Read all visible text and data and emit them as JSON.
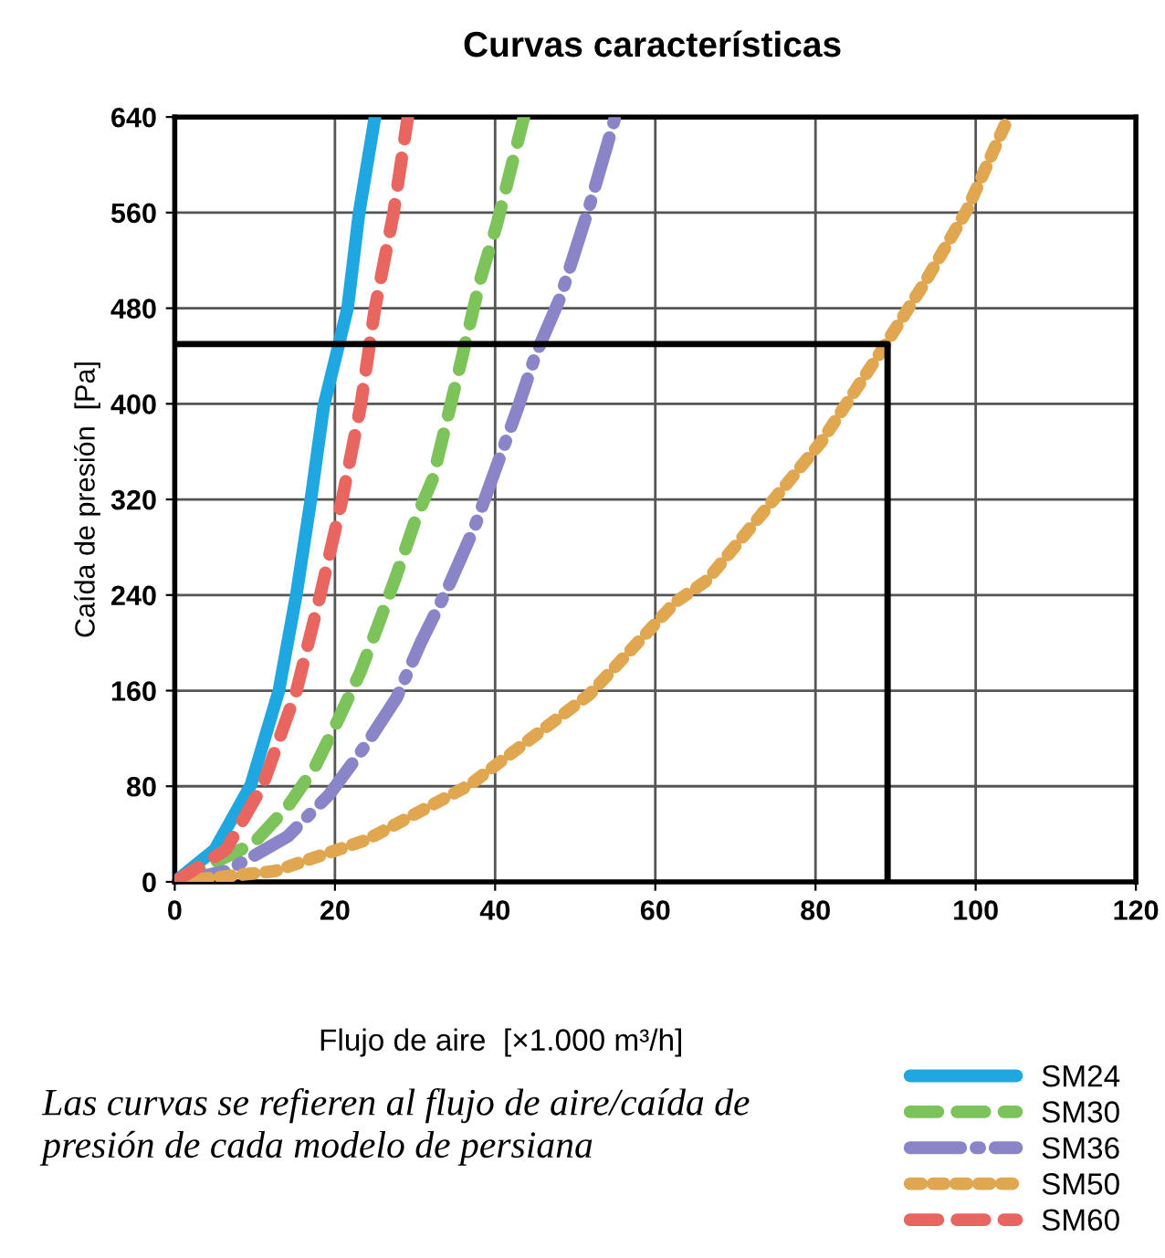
{
  "chart_data": {
    "type": "line",
    "title": "Curvas características",
    "xlabel": "Flujo de aire  [×1.000 m³/h]",
    "ylabel": "Caída de presión  [Pa]",
    "annotations": [
      "Las curvas se refieren al flujo de aire/caída de presión de cada modelo de persiana"
    ],
    "xlim": [
      0,
      120
    ],
    "ylim": [
      0,
      640
    ],
    "xticks": [
      0,
      20,
      40,
      60,
      80,
      100,
      120
    ],
    "yticks": [
      0,
      80,
      160,
      240,
      320,
      400,
      480,
      560,
      640
    ],
    "grid": true,
    "legend": "bottom right",
    "marker": "none",
    "series": [
      {
        "name": "SM24",
        "color": "#1ea7e0",
        "line_style": "solid",
        "x": [
          0,
          5.0,
          9.5,
          13.0,
          15.2,
          17.0,
          18.6,
          20.5,
          21.6,
          23.0,
          25
        ],
        "values": [
          0,
          27,
          81,
          160,
          241,
          320,
          398,
          450,
          481,
          559,
          640
        ]
      },
      {
        "name": "SM30",
        "color": "#7cc35a",
        "line_style": "dashed",
        "x": [
          0,
          9.8,
          14.1,
          17.5,
          20.5,
          23.2,
          25.4,
          27.7,
          30,
          32.2,
          35.2,
          38.2,
          40.2,
          43.6
        ],
        "values": [
          0,
          32,
          63,
          96,
          137,
          176,
          215,
          257,
          302,
          337,
          420,
          505,
          550,
          640
        ]
      },
      {
        "name": "SM36",
        "color": "#8a84c8",
        "line_style": "dashdot",
        "x": [
          0,
          6.4,
          10.2,
          14.1,
          19.3,
          23.9,
          27.7,
          30.7,
          34.1,
          37.5,
          40.2,
          42.7,
          45,
          48.2,
          51.8,
          55
        ],
        "values": [
          0,
          9,
          23,
          38,
          73,
          115,
          154,
          200,
          246,
          298,
          348,
          394,
          440,
          490,
          566,
          640
        ]
      },
      {
        "name": "SM50",
        "color": "#e0a650",
        "line_style": "dotted",
        "x": [
          0,
          12.5,
          23.9,
          36.8,
          51.8,
          62.5,
          66.4,
          73.2,
          80.7,
          88.2,
          93.6,
          98.9,
          104.1
        ],
        "values": [
          0,
          9,
          35,
          81,
          157,
          234,
          252,
          307,
          368,
          444,
          501,
          562,
          640
        ]
      },
      {
        "name": "SM60",
        "color": "#e86560",
        "line_style": "dashed",
        "x": [
          0,
          6.4,
          11,
          15.2,
          18.2,
          20.9,
          23.2,
          25,
          27.3,
          29.1
        ],
        "values": [
          0,
          27,
          81,
          160,
          241,
          320,
          398,
          480,
          559,
          640
        ]
      },
      {
        "color": "#000000",
        "line_style": "solid",
        "x": [
          0,
          89,
          89
        ],
        "values": [
          450,
          450,
          0
        ]
      }
    ]
  }
}
